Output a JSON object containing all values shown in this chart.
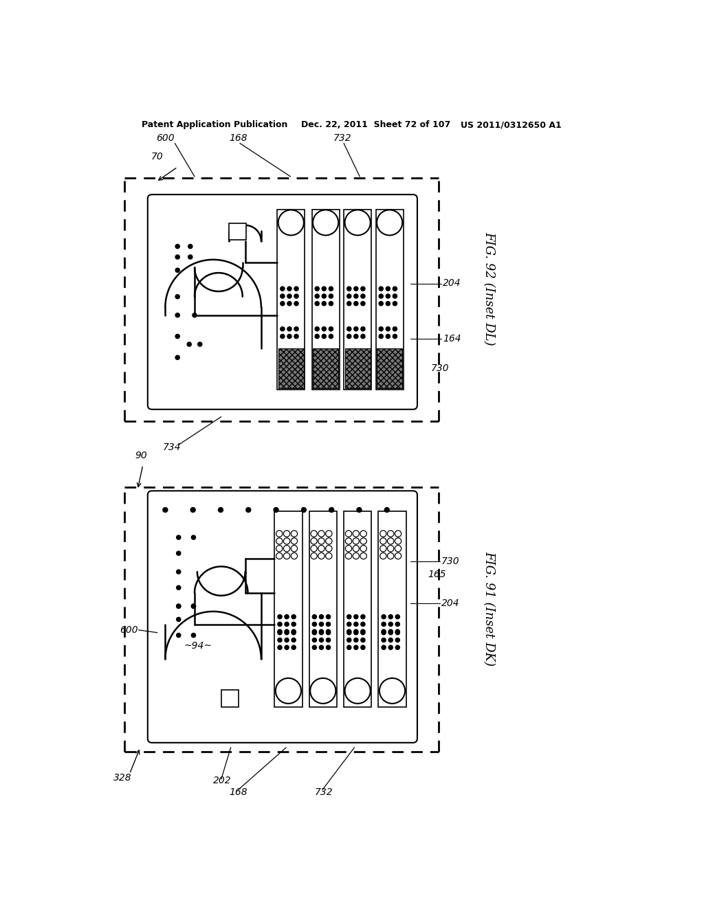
{
  "bg_color": "#ffffff",
  "line_color": "#000000",
  "header_left": "Patent Application Publication",
  "header_mid": "Dec. 22, 2011  Sheet 72 of 107",
  "header_right": "US 2011/0312650 A1",
  "fig1_label": "FIG. 92 (Inset DL)",
  "fig2_label": "FIG. 91 (Inset DK)",
  "fig1_ref": "70",
  "fig2_ref": "90",
  "fig1_anns": [
    "600",
    "168",
    "732",
    "204",
    "164",
    "730",
    "734"
  ],
  "fig2_anns": [
    "600",
    "168",
    "732",
    "204",
    "165",
    "730",
    "94",
    "328",
    "202",
    "90"
  ]
}
